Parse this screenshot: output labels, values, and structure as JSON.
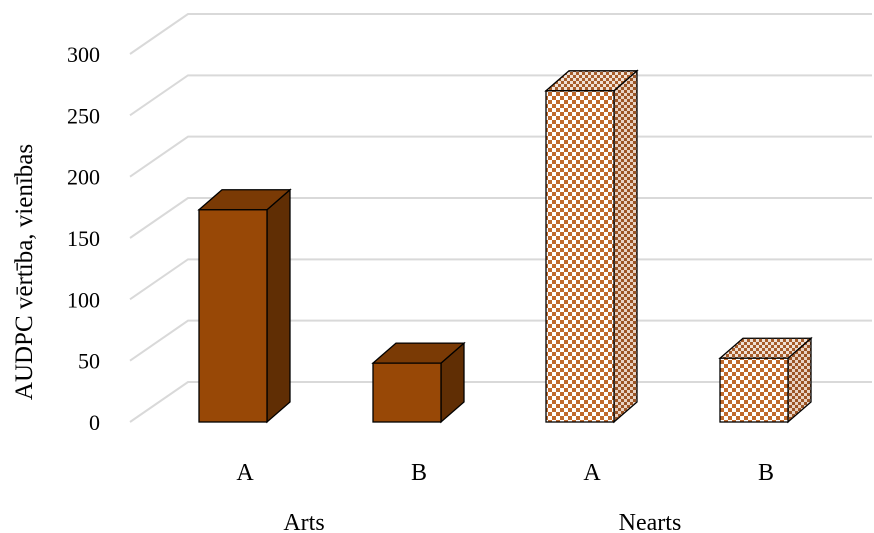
{
  "chart_data": {
    "type": "bar",
    "style": "3d-clustered-column",
    "ylabel": "AUDPC vērtība, vienības",
    "ylim": [
      0,
      300
    ],
    "yticks": [
      0,
      50,
      100,
      150,
      200,
      250,
      300
    ],
    "grid": true,
    "groups": [
      {
        "name": "Arts",
        "bars": [
          {
            "label": "A",
            "value": 173,
            "fill": "solid"
          },
          {
            "label": "B",
            "value": 48,
            "fill": "solid"
          }
        ]
      },
      {
        "name": "Nearts",
        "bars": [
          {
            "label": "A",
            "value": 270,
            "fill": "checkered"
          },
          {
            "label": "B",
            "value": 52,
            "fill": "checkered"
          }
        ]
      }
    ],
    "colors": {
      "bar_front": "#984806",
      "bar_top": "#7a3a05",
      "bar_side": "#602e04",
      "checker": "#c0692c",
      "gridline": "#d9d9d9"
    }
  }
}
